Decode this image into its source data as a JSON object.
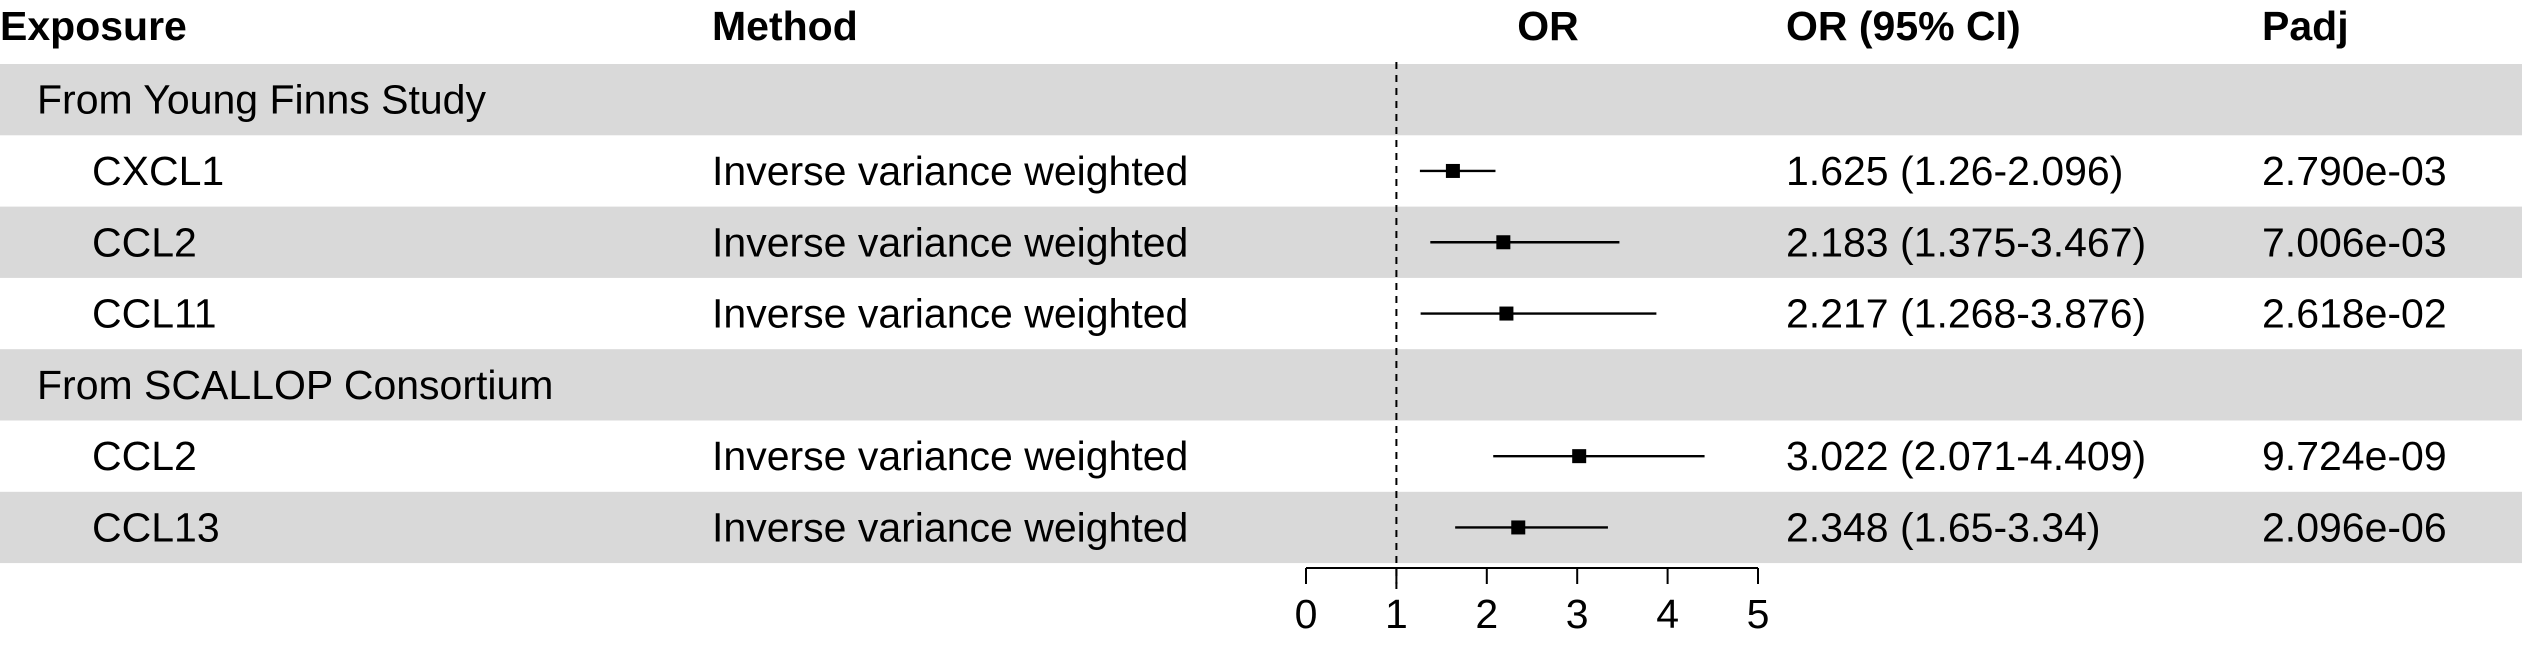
{
  "chart_data": {
    "type": "forest",
    "columns": {
      "exposure": "Exposure",
      "method": "Method",
      "plot": "OR",
      "ci": "OR (95% CI)",
      "padj": "Padj"
    },
    "rows": [
      {
        "kind": "group",
        "label": "From Young Finns Study"
      },
      {
        "kind": "item",
        "exposure": "CXCL1",
        "method": "Inverse variance weighted",
        "or": 1.625,
        "lo": 1.26,
        "hi": 2.096,
        "ci_text": "1.625 (1.26-2.096)",
        "padj": "2.790e-03"
      },
      {
        "kind": "item",
        "exposure": "CCL2",
        "method": "Inverse variance weighted",
        "or": 2.183,
        "lo": 1.375,
        "hi": 3.467,
        "ci_text": "2.183 (1.375-3.467)",
        "padj": "7.006e-03"
      },
      {
        "kind": "item",
        "exposure": "CCL11",
        "method": "Inverse variance weighted",
        "or": 2.217,
        "lo": 1.268,
        "hi": 3.876,
        "ci_text": "2.217 (1.268-3.876)",
        "padj": "2.618e-02"
      },
      {
        "kind": "group",
        "label": "From SCALLOP Consortium"
      },
      {
        "kind": "item",
        "exposure": "CCL2",
        "method": "Inverse variance weighted",
        "or": 3.022,
        "lo": 2.071,
        "hi": 4.409,
        "ci_text": "3.022 (2.071-4.409)",
        "padj": "9.724e-09"
      },
      {
        "kind": "item",
        "exposure": "CCL13",
        "method": "Inverse variance weighted",
        "or": 2.348,
        "lo": 1.65,
        "hi": 3.34,
        "ci_text": "2.348 (1.65-3.34)",
        "padj": "2.096e-06"
      }
    ],
    "xlim": [
      0,
      5
    ],
    "xticks": [
      "0",
      "1",
      "2",
      "3",
      "4",
      "5"
    ],
    "reference_line": 1,
    "shading": "alternating grey rows",
    "colors": {
      "band": "#d9d9d9",
      "ink": "#000000"
    }
  }
}
